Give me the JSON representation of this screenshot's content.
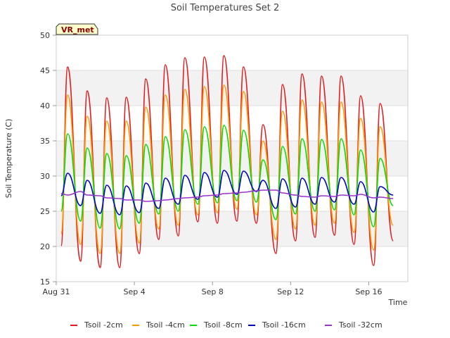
{
  "chart_data": {
    "type": "line",
    "title": "Soil Temperatures Set 2",
    "xlabel": "Time",
    "ylabel": "Soil Temperature (C)",
    "badge": "VR_met",
    "ylim": [
      15,
      50
    ],
    "y_ticks": [
      15,
      20,
      25,
      30,
      35,
      40,
      45,
      50
    ],
    "xlim": [
      "2023-08-31",
      "2023-09-18"
    ],
    "x_ticks": [
      {
        "value": "2023-08-31",
        "label": "Aug 31"
      },
      {
        "value": "2023-09-04",
        "label": "Sep 4"
      },
      {
        "value": "2023-09-08",
        "label": "Sep 8"
      },
      {
        "value": "2023-09-12",
        "label": "Sep 12"
      },
      {
        "value": "2023-09-16",
        "label": "Sep 16"
      }
    ],
    "grid": true,
    "banded_background": true,
    "legend_position": "bottom",
    "series": [
      {
        "name": "Tsoil -2cm",
        "color": "#e41a1c",
        "x": [
          "2023-08-31 06:00",
          "2023-08-31 14:00",
          "2023-09-01 06:00",
          "2023-09-01 14:00",
          "2023-09-02 06:00",
          "2023-09-02 14:00",
          "2023-09-03 06:00",
          "2023-09-03 14:00",
          "2023-09-04 06:00",
          "2023-09-04 14:00",
          "2023-09-05 06:00",
          "2023-09-05 14:00",
          "2023-09-06 06:00",
          "2023-09-06 14:00",
          "2023-09-07 06:00",
          "2023-09-07 14:00",
          "2023-09-08 06:00",
          "2023-09-08 14:00",
          "2023-09-09 06:00",
          "2023-09-09 14:00",
          "2023-09-10 06:00",
          "2023-09-10 14:00",
          "2023-09-11 06:00",
          "2023-09-11 14:00",
          "2023-09-12 06:00",
          "2023-09-12 14:00",
          "2023-09-13 06:00",
          "2023-09-13 14:00",
          "2023-09-14 06:00",
          "2023-09-14 14:00",
          "2023-09-15 06:00",
          "2023-09-15 14:00",
          "2023-09-16 06:00",
          "2023-09-16 14:00",
          "2023-09-17 06:00",
          "2023-09-17 14:00",
          "2023-09-17 20:00"
        ],
        "y": [
          20.1,
          45.5,
          17.9,
          42.1,
          17.0,
          41.1,
          17.0,
          41.2,
          19.0,
          43.8,
          21.0,
          45.8,
          21.5,
          46.8,
          23.5,
          46.9,
          23.3,
          47.1,
          23.6,
          45.5,
          23.3,
          37.3,
          19.0,
          43.0,
          20.8,
          44.5,
          21.3,
          44.2,
          21.6,
          44.2,
          20.3,
          41.4,
          17.3,
          40.3,
          20.8,
          null,
          null
        ]
      },
      {
        "name": "Tsoil -4cm",
        "color": "#ff9900",
        "x": [
          "2023-08-31 06:00",
          "2023-08-31 14:00",
          "2023-09-01 06:00",
          "2023-09-01 14:00",
          "2023-09-02 06:00",
          "2023-09-02 14:00",
          "2023-09-03 06:00",
          "2023-09-03 14:00",
          "2023-09-04 06:00",
          "2023-09-04 14:00",
          "2023-09-05 06:00",
          "2023-09-05 14:00",
          "2023-09-06 06:00",
          "2023-09-06 14:00",
          "2023-09-07 06:00",
          "2023-09-07 14:00",
          "2023-09-08 06:00",
          "2023-09-08 14:00",
          "2023-09-09 06:00",
          "2023-09-09 14:00",
          "2023-09-10 06:00",
          "2023-09-10 14:00",
          "2023-09-11 06:00",
          "2023-09-11 14:00",
          "2023-09-12 06:00",
          "2023-09-12 14:00",
          "2023-09-13 06:00",
          "2023-09-13 14:00",
          "2023-09-14 06:00",
          "2023-09-14 14:00",
          "2023-09-15 06:00",
          "2023-09-15 14:00",
          "2023-09-16 06:00",
          "2023-09-16 14:00",
          "2023-09-17 06:00",
          "2023-09-17 14:00",
          "2023-09-17 20:00"
        ],
        "y": [
          21.8,
          41.5,
          20.3,
          38.5,
          19.0,
          37.8,
          19.0,
          37.8,
          20.5,
          39.8,
          22.5,
          41.5,
          23.0,
          42.3,
          24.5,
          42.7,
          24.8,
          42.9,
          25.3,
          42.0,
          24.5,
          35.0,
          21.0,
          39.2,
          22.5,
          40.8,
          23.0,
          40.5,
          23.3,
          40.5,
          22.0,
          38.2,
          19.5,
          37.0,
          23.0,
          null,
          null
        ]
      },
      {
        "name": "Tsoil -8cm",
        "color": "#00dd00",
        "x": [
          "2023-08-31 06:00",
          "2023-08-31 14:00",
          "2023-09-01 06:00",
          "2023-09-01 14:00",
          "2023-09-02 06:00",
          "2023-09-02 14:00",
          "2023-09-03 06:00",
          "2023-09-03 14:00",
          "2023-09-04 06:00",
          "2023-09-04 14:00",
          "2023-09-05 06:00",
          "2023-09-05 14:00",
          "2023-09-06 06:00",
          "2023-09-06 14:00",
          "2023-09-07 06:00",
          "2023-09-07 14:00",
          "2023-09-08 06:00",
          "2023-09-08 14:00",
          "2023-09-09 06:00",
          "2023-09-09 14:00",
          "2023-09-10 06:00",
          "2023-09-10 14:00",
          "2023-09-11 06:00",
          "2023-09-11 14:00",
          "2023-09-12 06:00",
          "2023-09-12 14:00",
          "2023-09-13 06:00",
          "2023-09-13 14:00",
          "2023-09-14 06:00",
          "2023-09-14 14:00",
          "2023-09-15 06:00",
          "2023-09-15 14:00",
          "2023-09-16 06:00",
          "2023-09-16 14:00",
          "2023-09-17 06:00",
          "2023-09-17 14:00",
          "2023-09-17 20:00"
        ],
        "y": [
          25.0,
          36.0,
          23.6,
          34.0,
          22.6,
          33.2,
          22.5,
          32.9,
          23.3,
          34.5,
          24.6,
          35.6,
          25.0,
          36.6,
          26.0,
          37.0,
          26.2,
          37.2,
          26.5,
          36.5,
          26.3,
          32.3,
          23.8,
          34.2,
          24.6,
          35.3,
          25.0,
          35.2,
          25.2,
          35.3,
          24.5,
          33.7,
          22.8,
          32.5,
          25.8,
          null,
          null
        ]
      },
      {
        "name": "Tsoil -16cm",
        "color": "#0000cc",
        "x": [
          "2023-08-31 06:00",
          "2023-08-31 14:00",
          "2023-09-01 06:00",
          "2023-09-01 14:00",
          "2023-09-02 06:00",
          "2023-09-02 14:00",
          "2023-09-03 06:00",
          "2023-09-03 14:00",
          "2023-09-04 06:00",
          "2023-09-04 14:00",
          "2023-09-05 06:00",
          "2023-09-05 14:00",
          "2023-09-06 06:00",
          "2023-09-06 14:00",
          "2023-09-07 06:00",
          "2023-09-07 14:00",
          "2023-09-08 06:00",
          "2023-09-08 14:00",
          "2023-09-09 06:00",
          "2023-09-09 14:00",
          "2023-09-10 06:00",
          "2023-09-10 14:00",
          "2023-09-11 06:00",
          "2023-09-11 14:00",
          "2023-09-12 06:00",
          "2023-09-12 14:00",
          "2023-09-13 06:00",
          "2023-09-13 14:00",
          "2023-09-14 06:00",
          "2023-09-14 14:00",
          "2023-09-15 06:00",
          "2023-09-15 14:00",
          "2023-09-16 06:00",
          "2023-09-16 14:00",
          "2023-09-17 06:00",
          "2023-09-17 14:00",
          "2023-09-17 20:00"
        ],
        "y": [
          27.2,
          30.4,
          25.8,
          29.4,
          24.7,
          28.7,
          24.5,
          28.6,
          24.8,
          29.0,
          25.4,
          29.7,
          26.0,
          30.1,
          26.7,
          30.5,
          27.0,
          30.8,
          27.4,
          30.7,
          27.8,
          29.4,
          25.4,
          29.6,
          25.6,
          29.7,
          26.0,
          29.8,
          26.3,
          29.8,
          26.0,
          29.2,
          24.9,
          28.5,
          27.3,
          null,
          null
        ]
      },
      {
        "name": "Tsoil -32cm",
        "color": "#9933cc",
        "x": [
          "2023-08-31 06:00",
          "2023-08-31 14:00",
          "2023-09-01 06:00",
          "2023-09-01 14:00",
          "2023-09-02 06:00",
          "2023-09-02 14:00",
          "2023-09-03 06:00",
          "2023-09-03 14:00",
          "2023-09-04 06:00",
          "2023-09-04 14:00",
          "2023-09-05 06:00",
          "2023-09-05 14:00",
          "2023-09-06 06:00",
          "2023-09-06 14:00",
          "2023-09-07 06:00",
          "2023-09-07 14:00",
          "2023-09-08 06:00",
          "2023-09-08 14:00",
          "2023-09-09 06:00",
          "2023-09-09 14:00",
          "2023-09-10 06:00",
          "2023-09-10 14:00",
          "2023-09-11 06:00",
          "2023-09-11 14:00",
          "2023-09-12 06:00",
          "2023-09-12 14:00",
          "2023-09-13 06:00",
          "2023-09-13 14:00",
          "2023-09-14 06:00",
          "2023-09-14 14:00",
          "2023-09-15 06:00",
          "2023-09-15 14:00",
          "2023-09-16 06:00",
          "2023-09-16 14:00",
          "2023-09-17 06:00",
          "2023-09-17 14:00",
          "2023-09-17 20:00"
        ],
        "y": [
          27.5,
          27.3,
          27.8,
          27.3,
          27.2,
          26.9,
          26.8,
          26.6,
          26.6,
          26.4,
          26.5,
          26.6,
          26.8,
          26.9,
          27.0,
          27.2,
          27.3,
          27.5,
          27.6,
          27.7,
          27.9,
          28.0,
          28.0,
          27.6,
          27.3,
          27.1,
          27.0,
          27.2,
          27.1,
          27.3,
          27.2,
          27.4,
          26.9,
          27.0,
          26.8,
          null,
          null
        ]
      }
    ]
  }
}
